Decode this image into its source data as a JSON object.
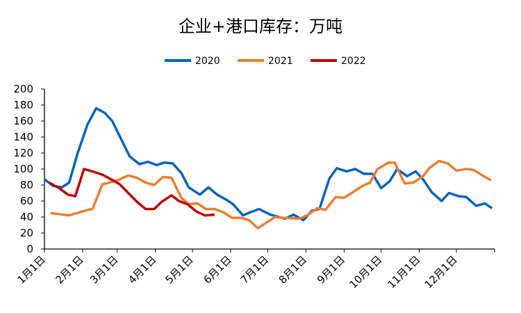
{
  "chart_data": {
    "type": "line",
    "title": "企业+港口库存：万吨",
    "xlabel": "",
    "ylabel": "",
    "ylim": [
      0,
      200
    ],
    "yticks": [
      "0",
      "20",
      "40",
      "60",
      "80",
      "100",
      "120",
      "140",
      "160",
      "180",
      "200"
    ],
    "xticks": [
      "1月1日",
      "2月1日",
      "3月1日",
      "4月1日",
      "5月1日",
      "6月1日",
      "7月1日",
      "8月1日",
      "9月1日",
      "10月1日",
      "11月1日",
      "12月1日"
    ],
    "grid": false,
    "legend": "top",
    "series": [
      {
        "name": "2020",
        "color": "#0563C1",
        "x": [
          "01-01",
          "01-08",
          "01-15",
          "01-21",
          "01-28",
          "02-05",
          "02-12",
          "02-19",
          "02-25",
          "03-05",
          "03-11",
          "03-19",
          "03-26",
          "04-02",
          "04-08",
          "04-15",
          "04-22",
          "04-28",
          "05-07",
          "05-14",
          "05-21",
          "05-28",
          "06-03",
          "06-11",
          "06-17",
          "06-24",
          "07-03",
          "07-15",
          "07-22",
          "07-30",
          "08-06",
          "08-12",
          "08-20",
          "08-26",
          "09-03",
          "09-10",
          "09-17",
          "09-24",
          "10-01",
          "10-08",
          "10-14",
          "10-22",
          "10-29",
          "11-04",
          "11-11",
          "11-19",
          "11-25",
          "12-03",
          "12-09",
          "12-17",
          "12-24",
          "12-30"
        ],
        "values": [
          87,
          79,
          77,
          83,
          120,
          156,
          176,
          170,
          160,
          135,
          116,
          106,
          109,
          105,
          108,
          107,
          95,
          77,
          68,
          77,
          68,
          62,
          56,
          42,
          46,
          50,
          43,
          38,
          43,
          36,
          48,
          50,
          88,
          101,
          97,
          100,
          94,
          94,
          76,
          85,
          100,
          91,
          97,
          87,
          71,
          60,
          70,
          66,
          65,
          54,
          57,
          51
        ]
      },
      {
        "name": "2021",
        "color": "#ED7D31",
        "x": [
          "01-06",
          "01-21",
          "02-03",
          "02-09",
          "02-17",
          "02-25",
          "03-03",
          "03-10",
          "03-17",
          "03-24",
          "03-31",
          "04-07",
          "04-14",
          "04-22",
          "04-28",
          "05-05",
          "05-12",
          "05-19",
          "05-26",
          "06-02",
          "06-09",
          "06-16",
          "06-23",
          "06-27",
          "07-07",
          "07-14",
          "07-27",
          "08-03",
          "08-10",
          "08-17",
          "08-25",
          "09-01",
          "09-08",
          "09-16",
          "09-22",
          "09-28",
          "10-07",
          "10-12",
          "10-20",
          "10-27",
          "11-04",
          "11-09",
          "11-17",
          "11-24",
          "12-01",
          "12-09",
          "12-15",
          "12-22",
          "12-29"
        ],
        "values": [
          45,
          42,
          48,
          50,
          81,
          84,
          87,
          92,
          89,
          83,
          80,
          90,
          89,
          64,
          56,
          57,
          50,
          50,
          46,
          39,
          39,
          36,
          26,
          30,
          40,
          39,
          38,
          43,
          51,
          49,
          65,
          64,
          71,
          79,
          83,
          100,
          108,
          108,
          82,
          83,
          91,
          101,
          110,
          107,
          98,
          100,
          99,
          92,
          86
        ]
      },
      {
        "name": "2022",
        "color": "#C00000",
        "x": [
          "01-05",
          "01-13",
          "01-20",
          "01-26",
          "02-02",
          "02-09",
          "02-17",
          "02-23",
          "03-03",
          "03-10",
          "03-17",
          "03-24",
          "03-31",
          "04-06",
          "04-14",
          "04-20",
          "04-27",
          "05-04",
          "05-11",
          "05-19"
        ],
        "values": [
          83,
          76,
          68,
          66,
          100,
          97,
          93,
          88,
          81,
          70,
          59,
          50,
          50,
          59,
          67,
          60,
          56,
          47,
          42,
          43
        ]
      }
    ]
  }
}
